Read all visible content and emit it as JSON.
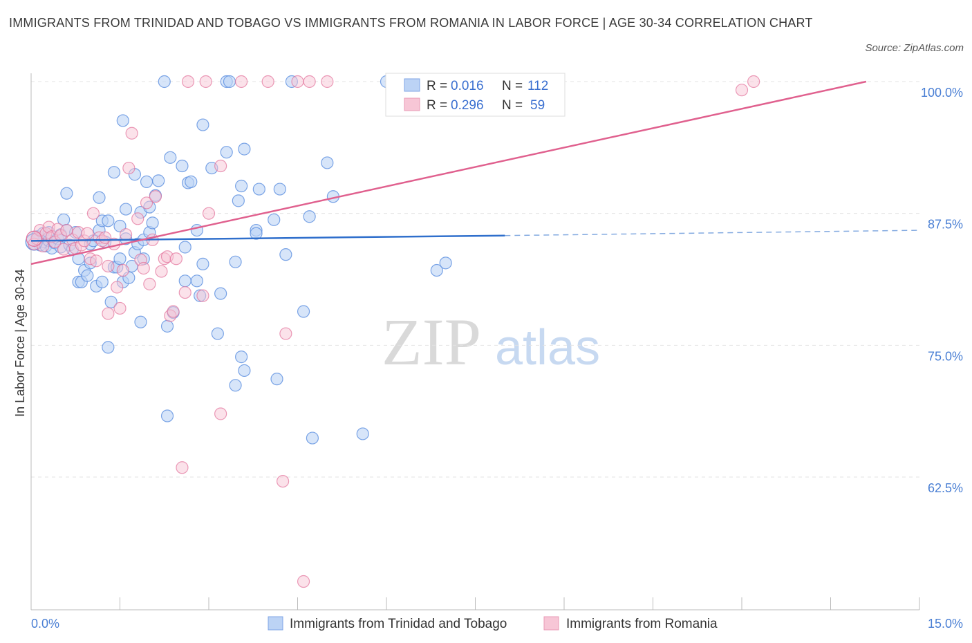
{
  "title": "IMMIGRANTS FROM TRINIDAD AND TOBAGO VS IMMIGRANTS FROM ROMANIA IN LABOR FORCE | AGE 30-34 CORRELATION CHART",
  "source": "Source: ZipAtlas.com",
  "watermark": {
    "zip": "ZIP",
    "atlas": "atlas"
  },
  "colors": {
    "blue": "#5b8fe0",
    "blue_fill": "#bcd3f5",
    "pink": "#e2709a",
    "pink_fill": "#f7c6d6",
    "blue_line": "#2f6fcc",
    "pink_line": "#e0608e"
  },
  "legend": {
    "r_label": "R =",
    "n_label": "N =",
    "blue": {
      "r": "0.016",
      "n": "112"
    },
    "pink": {
      "r": "0.296",
      "n": "59"
    }
  },
  "chart_data": {
    "type": "scatter",
    "title": "IMMIGRANTS FROM TRINIDAD AND TOBAGO VS IMMIGRANTS FROM ROMANIA IN LABOR FORCE | AGE 30-34 CORRELATION CHART",
    "xlabel": "",
    "ylabel": "In Labor Force | Age 30-34",
    "x_ticks": [
      "0.0%",
      "15.0%"
    ],
    "y_ticks": [
      "100.0%",
      "87.5%",
      "75.0%",
      "62.5%"
    ],
    "xlim": [
      0,
      15
    ],
    "ylim": [
      50,
      101
    ],
    "grid": true,
    "legend_position": "top-center",
    "series": [
      {
        "name": "Immigrants from Trinidad and Tobago",
        "color": "#5b8fe0",
        "trend": {
          "x": [
            0,
            8.0,
            15
          ],
          "y": [
            84.9,
            85.4,
            85.9
          ],
          "solid_until": 8.0
        },
        "points": [
          [
            0.05,
            84.6
          ],
          [
            0.1,
            84.9
          ],
          [
            0.1,
            85.3
          ],
          [
            0.15,
            84.5
          ],
          [
            0.2,
            84.8
          ],
          [
            0.2,
            85.6
          ],
          [
            0.25,
            84.4
          ],
          [
            0.3,
            84.9
          ],
          [
            0.3,
            85.7
          ],
          [
            0.35,
            84.2
          ],
          [
            0.4,
            84.7
          ],
          [
            0.45,
            85.1
          ],
          [
            0.5,
            84.3
          ],
          [
            0.5,
            85.5
          ],
          [
            0.55,
            86.9
          ],
          [
            0.6,
            85.9
          ],
          [
            0.6,
            89.4
          ],
          [
            0.65,
            84.5
          ],
          [
            0.7,
            84.1
          ],
          [
            0.75,
            85.7
          ],
          [
            0.8,
            83.2
          ],
          [
            0.8,
            81.0
          ],
          [
            0.85,
            81.0
          ],
          [
            0.9,
            82.1
          ],
          [
            0.95,
            81.6
          ],
          [
            1.0,
            82.8
          ],
          [
            1.0,
            84.6
          ],
          [
            1.05,
            84.9
          ],
          [
            1.1,
            80.6
          ],
          [
            1.15,
            85.9
          ],
          [
            1.15,
            89.0
          ],
          [
            1.2,
            81.0
          ],
          [
            1.2,
            86.8
          ],
          [
            1.25,
            84.8
          ],
          [
            1.3,
            86.8
          ],
          [
            1.3,
            74.8
          ],
          [
            1.35,
            79.1
          ],
          [
            1.4,
            91.4
          ],
          [
            1.4,
            82.4
          ],
          [
            1.45,
            82.4
          ],
          [
            1.5,
            86.3
          ],
          [
            1.5,
            83.2
          ],
          [
            1.55,
            81.0
          ],
          [
            1.55,
            96.3
          ],
          [
            1.6,
            85.1
          ],
          [
            1.6,
            87.9
          ],
          [
            1.65,
            81.4
          ],
          [
            1.7,
            82.5
          ],
          [
            1.75,
            83.8
          ],
          [
            1.75,
            91.2
          ],
          [
            1.8,
            84.6
          ],
          [
            1.85,
            77.2
          ],
          [
            1.85,
            87.6
          ],
          [
            1.9,
            85.0
          ],
          [
            1.9,
            83.2
          ],
          [
            1.95,
            90.5
          ],
          [
            2.0,
            88.1
          ],
          [
            2.0,
            85.7
          ],
          [
            2.05,
            86.6
          ],
          [
            2.1,
            89.2
          ],
          [
            2.15,
            90.6
          ],
          [
            2.25,
            100.0
          ],
          [
            2.3,
            76.8
          ],
          [
            2.3,
            68.3
          ],
          [
            2.35,
            92.8
          ],
          [
            2.4,
            78.1
          ],
          [
            2.55,
            92.0
          ],
          [
            2.6,
            81.1
          ],
          [
            2.6,
            84.3
          ],
          [
            2.65,
            90.4
          ],
          [
            2.7,
            90.5
          ],
          [
            2.8,
            85.9
          ],
          [
            2.8,
            81.1
          ],
          [
            2.85,
            79.7
          ],
          [
            2.9,
            95.9
          ],
          [
            2.9,
            82.7
          ],
          [
            3.05,
            91.8
          ],
          [
            3.15,
            76.1
          ],
          [
            3.2,
            79.9
          ],
          [
            3.3,
            93.3
          ],
          [
            3.3,
            100.0
          ],
          [
            3.35,
            100.0
          ],
          [
            3.45,
            71.2
          ],
          [
            3.45,
            82.9
          ],
          [
            3.5,
            88.7
          ],
          [
            3.55,
            73.9
          ],
          [
            3.55,
            90.1
          ],
          [
            3.6,
            72.6
          ],
          [
            3.6,
            93.6
          ],
          [
            3.8,
            85.9
          ],
          [
            3.8,
            85.6
          ],
          [
            3.85,
            89.8
          ],
          [
            4.1,
            86.9
          ],
          [
            4.15,
            71.8
          ],
          [
            4.2,
            89.8
          ],
          [
            4.3,
            83.6
          ],
          [
            4.4,
            100.0
          ],
          [
            4.6,
            78.2
          ],
          [
            4.7,
            87.2
          ],
          [
            4.75,
            66.2
          ],
          [
            5.0,
            92.3
          ],
          [
            5.1,
            89.1
          ],
          [
            5.6,
            66.6
          ],
          [
            6.0,
            100.0
          ],
          [
            6.85,
            82.1
          ],
          [
            7.0,
            82.8
          ]
        ]
      },
      {
        "name": "Immigrants from Romania",
        "color": "#e2709a",
        "trend": {
          "x": [
            0,
            14.1
          ],
          "y": [
            82.7,
            100.0
          ]
        },
        "points": [
          [
            0.05,
            84.6
          ],
          [
            0.1,
            85.1
          ],
          [
            0.15,
            85.9
          ],
          [
            0.2,
            84.4
          ],
          [
            0.25,
            85.6
          ],
          [
            0.3,
            86.2
          ],
          [
            0.35,
            85.3
          ],
          [
            0.4,
            84.8
          ],
          [
            0.45,
            86.0
          ],
          [
            0.5,
            85.4
          ],
          [
            0.55,
            84.1
          ],
          [
            0.6,
            85.9
          ],
          [
            0.7,
            85.0
          ],
          [
            0.75,
            84.2
          ],
          [
            0.8,
            85.7
          ],
          [
            0.85,
            84.5
          ],
          [
            0.9,
            84.9
          ],
          [
            0.95,
            85.6
          ],
          [
            1.0,
            83.2
          ],
          [
            1.05,
            87.5
          ],
          [
            1.1,
            83.0
          ],
          [
            1.15,
            85.2
          ],
          [
            1.2,
            84.9
          ],
          [
            1.25,
            85.2
          ],
          [
            1.3,
            82.5
          ],
          [
            1.3,
            78.0
          ],
          [
            1.4,
            84.6
          ],
          [
            1.45,
            80.5
          ],
          [
            1.5,
            78.5
          ],
          [
            1.55,
            82.1
          ],
          [
            1.6,
            85.5
          ],
          [
            1.65,
            91.8
          ],
          [
            1.7,
            95.1
          ],
          [
            1.8,
            87.0
          ],
          [
            1.85,
            83.1
          ],
          [
            1.9,
            82.3
          ],
          [
            1.95,
            88.5
          ],
          [
            2.0,
            80.8
          ],
          [
            2.05,
            85.0
          ],
          [
            2.1,
            89.1
          ],
          [
            2.2,
            82.0
          ],
          [
            2.25,
            83.2
          ],
          [
            2.3,
            83.4
          ],
          [
            2.35,
            77.8
          ],
          [
            2.4,
            78.2
          ],
          [
            2.45,
            83.2
          ],
          [
            2.55,
            63.4
          ],
          [
            2.6,
            80.0
          ],
          [
            2.65,
            100.0
          ],
          [
            2.9,
            79.7
          ],
          [
            2.95,
            100.0
          ],
          [
            3.0,
            87.5
          ],
          [
            3.2,
            92.0
          ],
          [
            3.2,
            68.5
          ],
          [
            3.55,
            100.0
          ],
          [
            4.0,
            100.0
          ],
          [
            4.25,
            62.1
          ],
          [
            4.3,
            76.1
          ],
          [
            4.5,
            100.0
          ],
          [
            4.6,
            52.6
          ],
          [
            4.7,
            100.0
          ],
          [
            5.0,
            100.0
          ],
          [
            12.0,
            99.2
          ],
          [
            12.2,
            100.0
          ]
        ]
      }
    ]
  }
}
